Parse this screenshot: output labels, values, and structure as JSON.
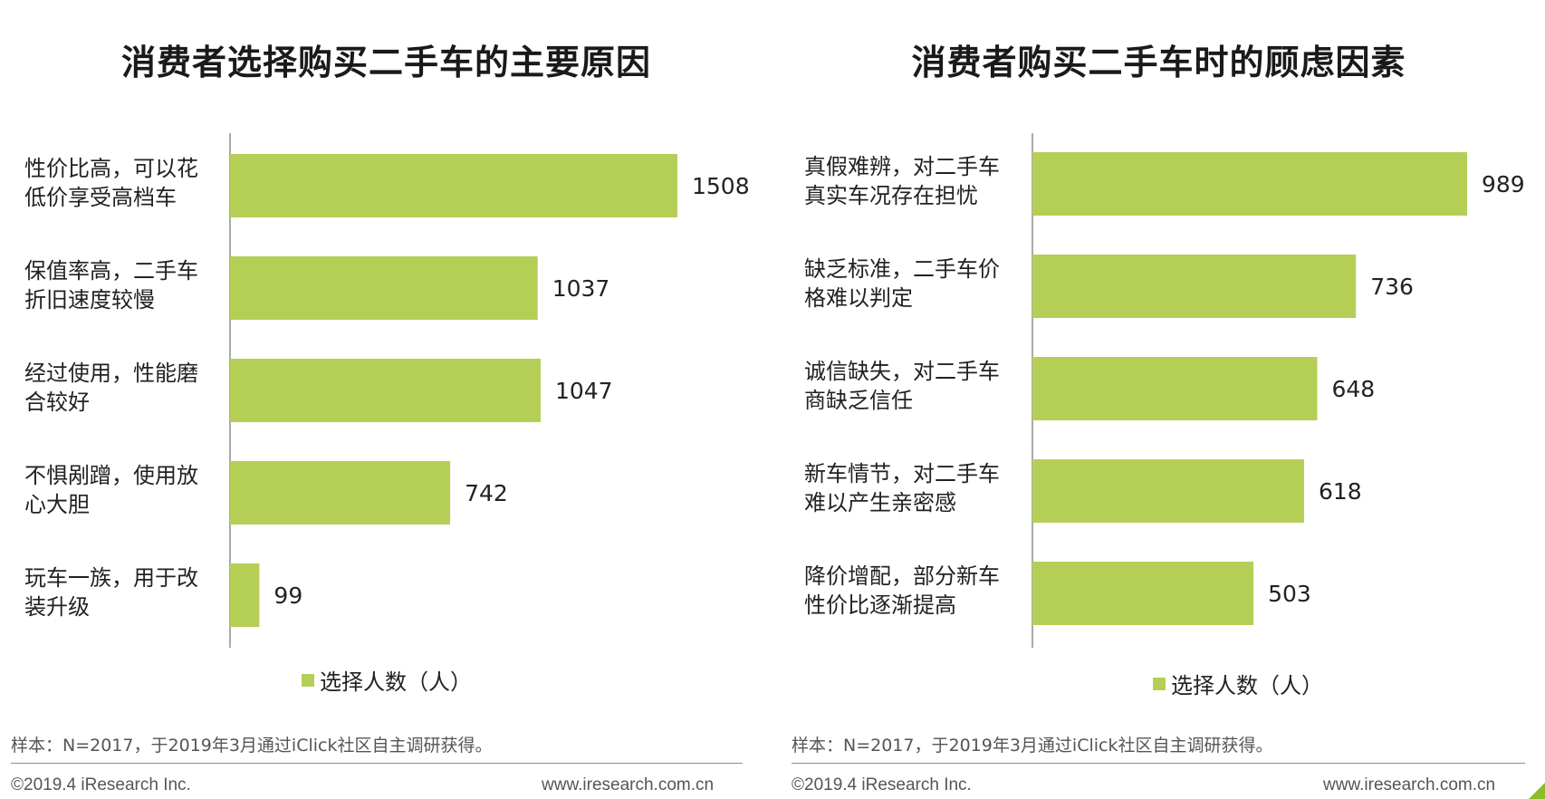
{
  "colors": {
    "bar": "#b5cf56",
    "axis": "#555555"
  },
  "chart_data": [
    {
      "type": "bar",
      "orientation": "horizontal",
      "title": "消费者选择购买二手车的主要原因",
      "categories": [
        [
          "性价比高，可以花",
          "低价享受高档车"
        ],
        [
          "保值率高，二手车",
          "折旧速度较慢"
        ],
        [
          "经过使用，性能磨",
          "合较好"
        ],
        [
          "不惧剐蹭，使用放",
          "心大胆"
        ],
        [
          "玩车一族，用于改",
          "装升级"
        ]
      ],
      "series": [
        {
          "name": "选择人数（人）",
          "values": [
            1508,
            1037,
            1047,
            742,
            99
          ]
        }
      ],
      "xlim": [
        0,
        1508
      ],
      "legend": "bottom",
      "grid": false
    },
    {
      "type": "bar",
      "orientation": "horizontal",
      "title": "消费者购买二手车时的顾虑因素",
      "categories": [
        [
          "真假难辨，对二手车",
          "真实车况存在担忧"
        ],
        [
          "缺乏标准，二手车价",
          "格难以判定"
        ],
        [
          "诚信缺失，对二手车",
          "商缺乏信任"
        ],
        [
          "新车情节，对二手车",
          "难以产生亲密感"
        ],
        [
          "降价增配，部分新车",
          "性价比逐渐提高"
        ]
      ],
      "series": [
        {
          "name": "选择人数（人）",
          "values": [
            989,
            736,
            648,
            618,
            503
          ]
        }
      ],
      "xlim": [
        0,
        989
      ],
      "legend": "bottom",
      "grid": false
    }
  ],
  "footnotes": [
    {
      "note": "样本：N=2017，于2019年3月通过iClick社区自主调研获得。",
      "copyright": "©2019.4 iResearch Inc.",
      "website": "www.iresearch.com.cn"
    },
    {
      "note": "样本：N=2017，于2019年3月通过iClick社区自主调研获得。",
      "copyright": "©2019.4 iResearch Inc.",
      "website": "www.iresearch.com.cn"
    }
  ]
}
